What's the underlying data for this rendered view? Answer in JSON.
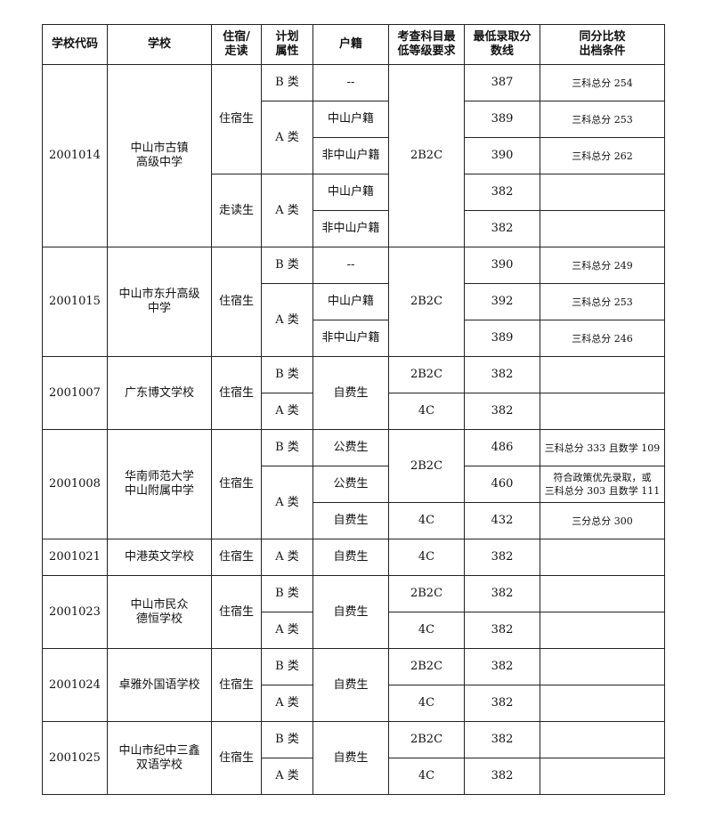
{
  "headers": [
    "学校代码",
    "学校",
    "住宿/\n走读",
    "计划\n属性",
    "户籍",
    "考查科目最\n低等级要求",
    "最低录取分\n数线",
    "同分比较\n出档条件"
  ],
  "s1": {
    "code": "2001014",
    "name": "中山市古镇\n高级中学",
    "board1": "住宿生",
    "board2": "走读生",
    "plan": [
      "B 类",
      "A 类",
      "A 类"
    ],
    "hukou": [
      "--",
      "中山户籍",
      "非中山户籍",
      "中山户籍",
      "非中山户籍"
    ],
    "req": "2B2C",
    "scores": [
      "387",
      "389",
      "390",
      "382",
      "382"
    ],
    "cmp": [
      "三科总分 254",
      "三科总分 253",
      "三科总分 262"
    ]
  },
  "s2": {
    "code": "2001015",
    "name": "中山市东升高级\n中学",
    "board": "住宿生",
    "plan": [
      "B 类",
      "A 类"
    ],
    "hukou": [
      "--",
      "中山户籍",
      "非中山户籍"
    ],
    "req": "2B2C",
    "scores": [
      "390",
      "392",
      "389"
    ],
    "cmp": [
      "三科总分 249",
      "三科总分 253",
      "三科总分 246"
    ]
  },
  "s3": {
    "code": "2001007",
    "name": "广东博文学校",
    "board": "住宿生",
    "plan": [
      "B 类",
      "A 类"
    ],
    "hukou": "自费生",
    "req": [
      "2B2C",
      "4C"
    ],
    "scores": [
      "382",
      "382"
    ]
  },
  "s4": {
    "code": "2001008",
    "name": "华南师范大学\n中山附属中学",
    "board": "住宿生",
    "plan": [
      "B 类",
      "A 类"
    ],
    "hukou": [
      "公费生",
      "公费生",
      "自费生"
    ],
    "req": [
      "2B2C",
      "4C"
    ],
    "scores": [
      "486",
      "460",
      "432"
    ],
    "cmp": [
      "三科总分 333 且数学 109",
      "符合政策优先录取，或\n三科总分 303 且数学 111",
      "三分总分 300"
    ]
  },
  "s5": {
    "code": "2001021",
    "name": "中港英文学校",
    "board": "住宿生",
    "plan": "A 类",
    "hukou": "自费生",
    "req": "4C",
    "score": "382"
  },
  "s6": {
    "code": "2001023",
    "name": "中山市民众\n德恒学校",
    "board": "住宿生",
    "plan": [
      "B 类",
      "A 类"
    ],
    "hukou": "自费生",
    "req": [
      "2B2C",
      "4C"
    ],
    "scores": [
      "382",
      "382"
    ]
  },
  "s7": {
    "code": "2001024",
    "name": "卓雅外国语学校",
    "board": "住宿生",
    "plan": [
      "B 类",
      "A 类"
    ],
    "hukou": "自费生",
    "req": [
      "2B2C",
      "4C"
    ],
    "scores": [
      "382",
      "382"
    ]
  },
  "s8": {
    "code": "2001025",
    "name": "中山市纪中三鑫\n双语学校",
    "board": "住宿生",
    "plan": [
      "B 类",
      "A 类"
    ],
    "hukou": "自费生",
    "req": [
      "2B2C",
      "4C"
    ],
    "scores": [
      "382",
      "382"
    ]
  }
}
